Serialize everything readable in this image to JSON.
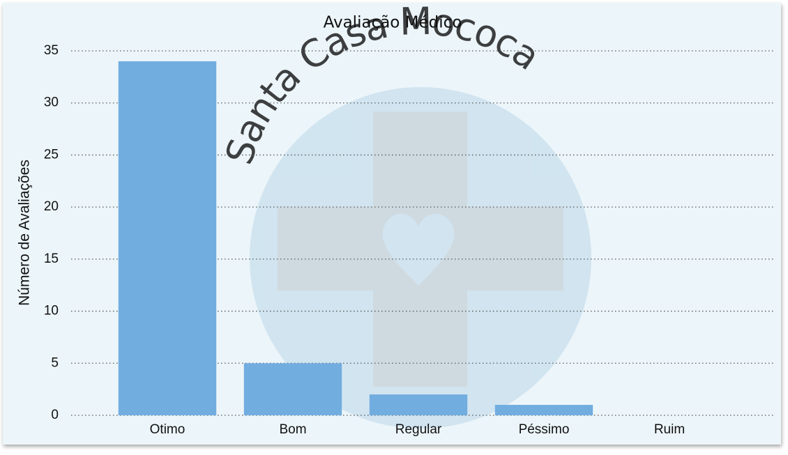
{
  "chart_data": {
    "type": "bar",
    "title": "Avaliação Médico",
    "ylabel": "Número de Avaliações",
    "watermark": "Santa Casa Mococa",
    "categories": [
      "Otimo",
      "Bom",
      "Regular",
      "Péssimo",
      "Ruim"
    ],
    "values": [
      34,
      5,
      2,
      1,
      0
    ],
    "color": "#72ade0",
    "ylim": [
      0,
      35
    ],
    "yticks": [
      0,
      5,
      10,
      15,
      20,
      25,
      30,
      35
    ],
    "grid": true
  }
}
